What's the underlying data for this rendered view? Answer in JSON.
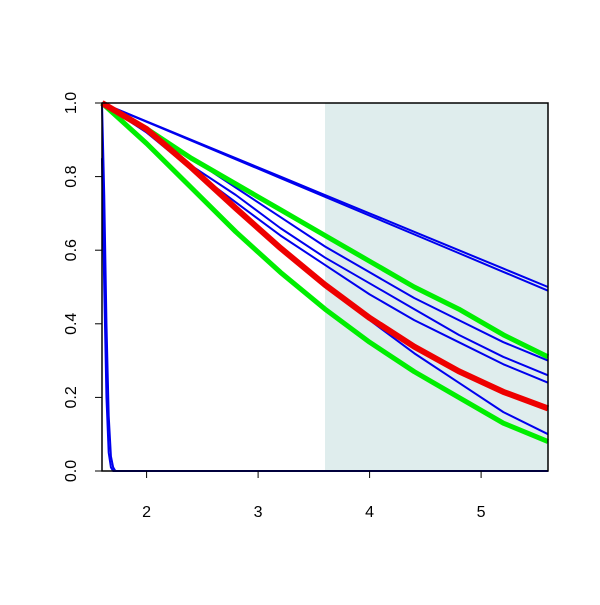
{
  "chart_data": {
    "type": "line",
    "xlim": [
      1.6,
      5.6
    ],
    "ylim": [
      0,
      1
    ],
    "xticks": [
      2,
      3,
      4,
      5
    ],
    "yticks": [
      {
        "value": 0,
        "label": "0.0"
      },
      0.2,
      0.4,
      0.6,
      0.8,
      {
        "value": 1,
        "label": "1.0"
      }
    ],
    "shade": {
      "xlim": [
        3.6,
        5.6
      ],
      "color": "#dfeded"
    },
    "series": [
      {
        "color": "#0000ee",
        "width": 2,
        "x": [
          1.6,
          1.62,
          1.64,
          1.66,
          1.68,
          1.7,
          5.6
        ],
        "values": [
          0.85,
          0.5,
          0.2,
          0.05,
          0.01,
          0,
          0
        ]
      },
      {
        "color": "#0000ee",
        "width": 2,
        "x": [
          1.6,
          1.62,
          1.64,
          1.66,
          1.68,
          1.7,
          1.72,
          5.6
        ],
        "values": [
          1,
          0.75,
          0.4,
          0.15,
          0.04,
          0.01,
          0,
          0
        ]
      },
      {
        "color": "#0000ee",
        "width": 2,
        "x": [
          1.6,
          2.0,
          2.4,
          2.8,
          3.2,
          3.6,
          4.0,
          4.4,
          4.8,
          5.2,
          5.6
        ],
        "values": [
          1,
          0.95,
          0.9,
          0.85,
          0.8,
          0.75,
          0.7,
          0.65,
          0.6,
          0.55,
          0.5
        ]
      },
      {
        "color": "#0000ee",
        "width": 2,
        "x": [
          1.6,
          2.0,
          2.4,
          2.8,
          3.2,
          3.6,
          4.0,
          4.4,
          4.8,
          5.2,
          5.6
        ],
        "values": [
          1,
          0.949,
          0.898,
          0.847,
          0.796,
          0.745,
          0.694,
          0.643,
          0.592,
          0.541,
          0.49
        ]
      },
      {
        "color": "#0000ee",
        "width": 2,
        "x": [
          1.6,
          2.0,
          2.4,
          2.8,
          3.2,
          3.6,
          4.0,
          4.4,
          4.8,
          5.2,
          5.6
        ],
        "values": [
          1,
          0.93,
          0.85,
          0.77,
          0.69,
          0.61,
          0.54,
          0.47,
          0.41,
          0.35,
          0.3
        ]
      },
      {
        "color": "#0000ee",
        "width": 2,
        "x": [
          1.6,
          2.0,
          2.4,
          2.8,
          3.2,
          3.6,
          4.0,
          4.4,
          4.8,
          5.2,
          5.6
        ],
        "values": [
          1,
          0.92,
          0.83,
          0.75,
          0.66,
          0.58,
          0.51,
          0.44,
          0.37,
          0.31,
          0.26
        ]
      },
      {
        "color": "#0000ee",
        "width": 2,
        "x": [
          1.6,
          2.0,
          2.4,
          2.8,
          3.2,
          3.6,
          4.0,
          4.4,
          4.8,
          5.2,
          5.6
        ],
        "values": [
          1,
          0.92,
          0.82,
          0.73,
          0.64,
          0.56,
          0.48,
          0.41,
          0.35,
          0.29,
          0.24
        ]
      },
      {
        "color": "#0000ee",
        "width": 2,
        "x": [
          1.6,
          2.0,
          2.4,
          2.8,
          3.2,
          3.6,
          4.0,
          4.4,
          4.8,
          5.2,
          5.6
        ],
        "values": [
          1,
          0.93,
          0.83,
          0.72,
          0.61,
          0.51,
          0.41,
          0.32,
          0.24,
          0.16,
          0.1
        ]
      },
      {
        "color": "#00ee00",
        "width": 5,
        "x": [
          1.6,
          2.0,
          2.4,
          2.8,
          3.2,
          3.6,
          4.0,
          4.4,
          4.8,
          5.2,
          5.6
        ],
        "values": [
          1,
          0.93,
          0.85,
          0.78,
          0.71,
          0.64,
          0.57,
          0.5,
          0.44,
          0.37,
          0.31
        ]
      },
      {
        "color": "#00ee00",
        "width": 5,
        "x": [
          1.6,
          2.0,
          2.4,
          2.8,
          3.2,
          3.6,
          4.0,
          4.4,
          4.8,
          5.2,
          5.6
        ],
        "values": [
          1,
          0.89,
          0.77,
          0.65,
          0.54,
          0.44,
          0.35,
          0.27,
          0.2,
          0.13,
          0.08
        ]
      },
      {
        "color": "#ee0000",
        "width": 6,
        "x": [
          1.6,
          2.0,
          2.4,
          2.8,
          3.2,
          3.6,
          4.0,
          4.4,
          4.8,
          5.2,
          5.6
        ],
        "values": [
          1,
          0.929,
          0.825,
          0.714,
          0.606,
          0.506,
          0.416,
          0.338,
          0.271,
          0.215,
          0.17
        ]
      }
    ]
  }
}
